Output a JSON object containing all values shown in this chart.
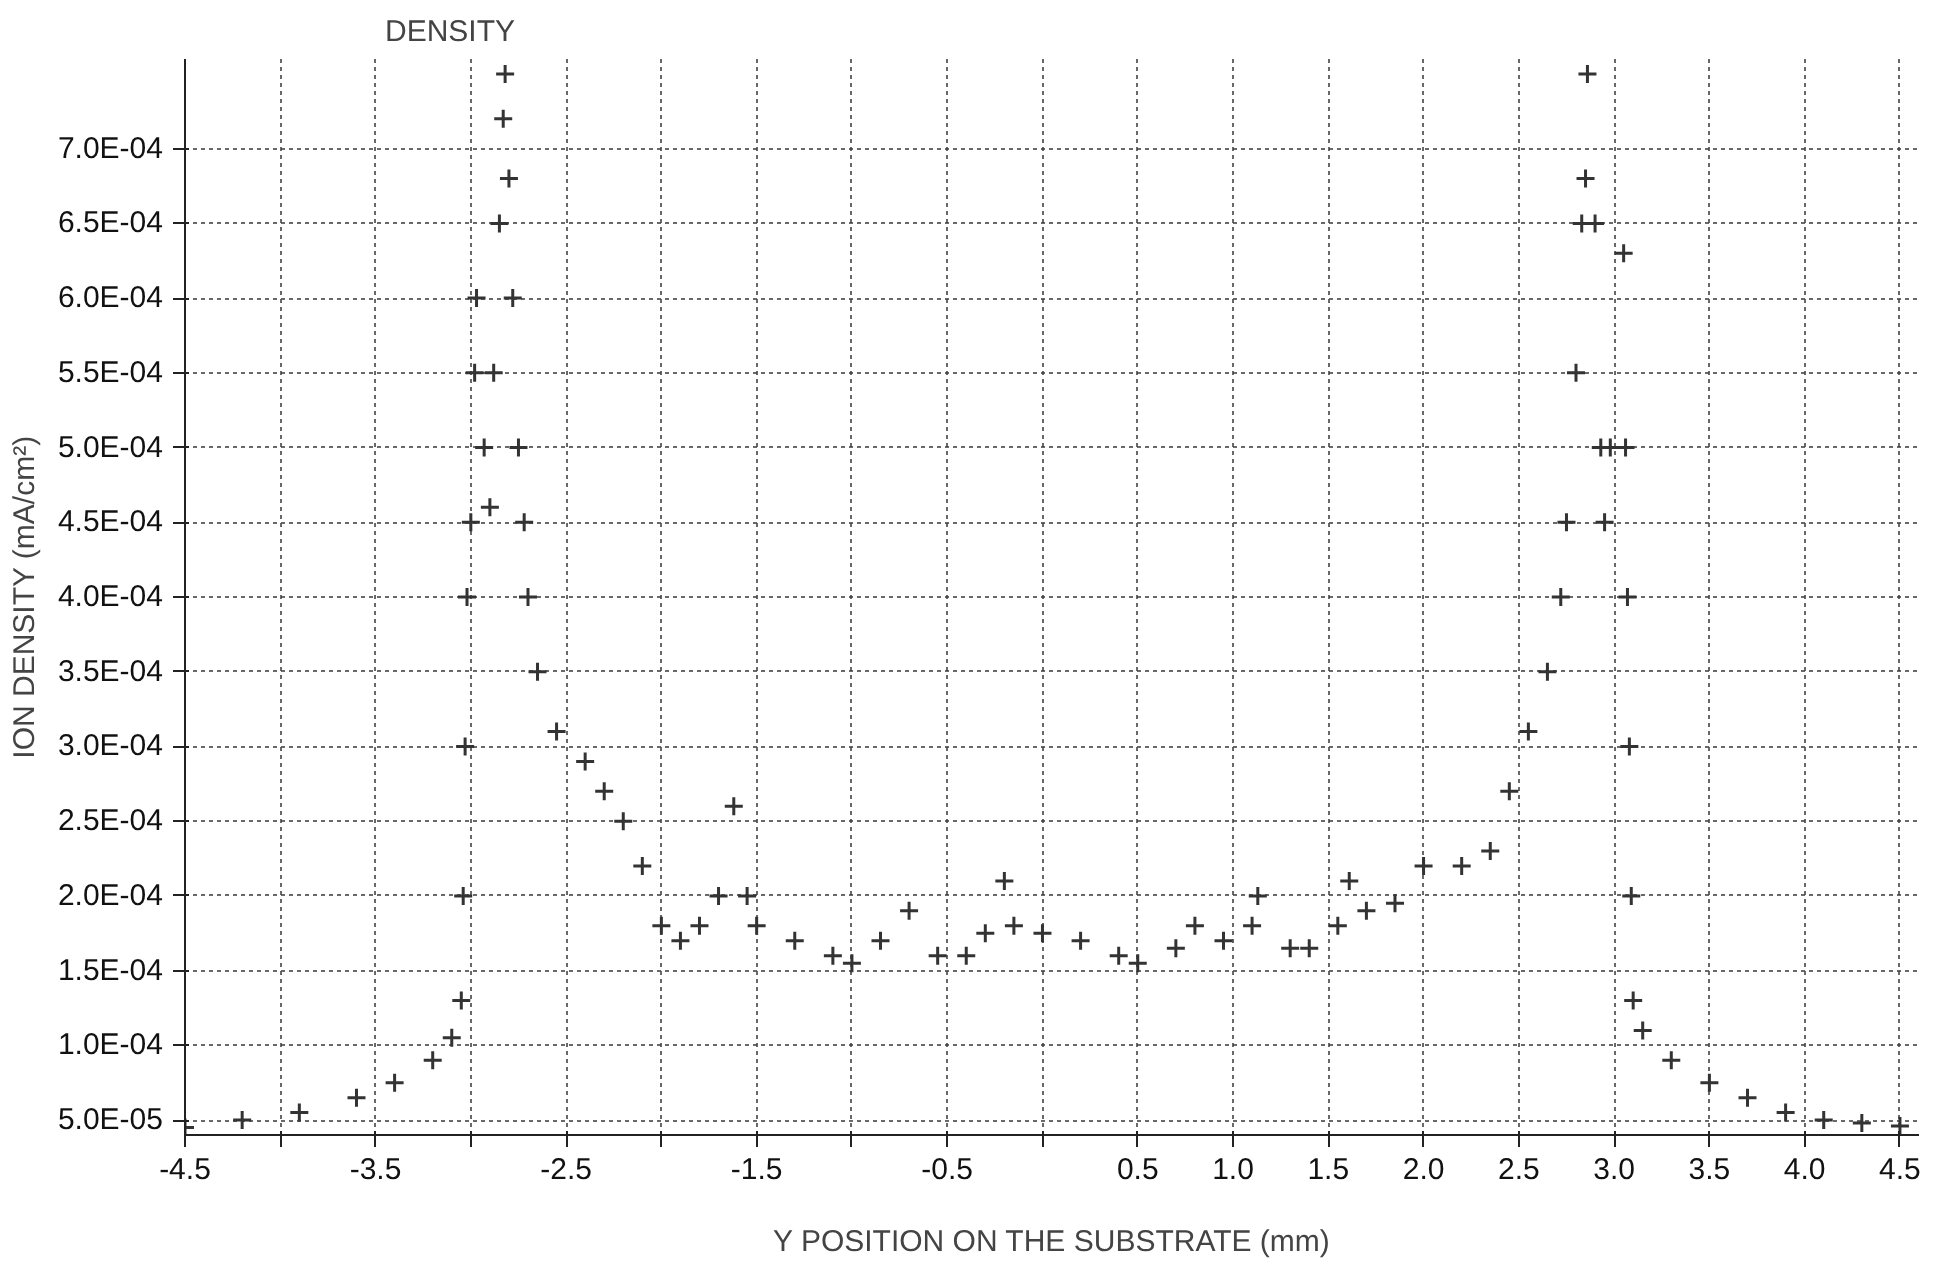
{
  "chart_data": {
    "type": "scatter",
    "xlabel": "Y POSITION ON THE SUBSTRATE (mm)",
    "ylabel": "ION DENSITY (mA/cm²)",
    "annotations": [
      "DENSITY"
    ],
    "marker": "cross",
    "grid": true,
    "xlim": [
      -4.5,
      4.6
    ],
    "ylim": [
      4e-05,
      0.00076
    ],
    "xticks": [
      -4.5,
      {
        "value": -4.0,
        "label": null
      },
      -3.5,
      {
        "value": -3.0,
        "label": null
      },
      -2.5,
      {
        "value": -2.0,
        "label": null
      },
      -1.5,
      {
        "value": -1.0,
        "label": null
      },
      -0.5,
      {
        "value": 0,
        "label": null
      },
      0.5,
      {
        "value": 1.0,
        "label": "1.0"
      },
      1.5,
      {
        "value": 2.0,
        "label": "2.0"
      },
      2.5,
      {
        "value": 3.0,
        "label": "3.0"
      },
      3.5,
      {
        "value": 4.0,
        "label": "4.0"
      },
      4.5
    ],
    "yticks": [
      {
        "value": 5e-05,
        "label": "5.0E-05"
      },
      {
        "value": 0.0001,
        "label": "1.0E-04"
      },
      {
        "value": 0.00015,
        "label": "1.5E-04"
      },
      {
        "value": 0.0002,
        "label": "2.0E-04"
      },
      {
        "value": 0.00025,
        "label": "2.5E-04"
      },
      {
        "value": 0.0003,
        "label": "3.0E-04"
      },
      {
        "value": 0.00035,
        "label": "3.5E-04"
      },
      {
        "value": 0.0004,
        "label": "4.0E-04"
      },
      {
        "value": 0.00045,
        "label": "4.5E-04"
      },
      {
        "value": 0.0005,
        "label": "5.0E-04"
      },
      {
        "value": 0.00055,
        "label": "5.5E-04"
      },
      {
        "value": 0.0006,
        "label": "6.0E-04"
      },
      {
        "value": 0.00065,
        "label": "6.5E-04"
      },
      {
        "value": 0.0007,
        "label": "7.0E-04"
      }
    ],
    "series": [
      {
        "color": "#333333",
        "x": [
          -4.5,
          -4.2,
          -3.9,
          -3.6,
          -3.4,
          -3.2,
          -3.1,
          -3.05,
          -3.04,
          -3.03,
          -3.02,
          -3.0,
          -2.98,
          -2.97,
          -2.93,
          -2.9,
          -2.88,
          -2.85,
          -2.83,
          -2.82,
          -2.8,
          -2.78,
          -2.75,
          -2.72,
          -2.7,
          -2.65,
          -2.55,
          -2.4,
          -2.3,
          -2.2,
          -2.1,
          -2.0,
          -1.9,
          -1.8,
          -1.7,
          -1.62,
          -1.55,
          -1.5,
          -1.3,
          -1.1,
          -1.0,
          -0.85,
          -0.7,
          -0.55,
          -0.4,
          -0.3,
          -0.2,
          -0.15,
          0.0,
          0.2,
          0.4,
          0.5,
          0.7,
          0.8,
          0.95,
          1.1,
          1.13,
          1.3,
          1.4,
          1.55,
          1.61,
          1.7,
          1.85,
          2.0,
          2.2,
          2.35,
          2.45,
          2.55,
          2.65,
          2.72,
          2.75,
          2.8,
          2.83,
          2.85,
          2.86,
          2.9,
          2.93,
          2.95,
          2.98,
          3.05,
          3.06,
          3.07,
          3.08,
          3.09,
          3.1,
          3.15,
          3.3,
          3.5,
          3.7,
          3.9,
          4.1,
          4.3,
          4.5
        ],
        "values": [
          4.5e-05,
          5e-05,
          5.5e-05,
          6.5e-05,
          7.5e-05,
          9e-05,
          0.000105,
          0.00013,
          0.0002,
          0.0003,
          0.0004,
          0.00045,
          0.00055,
          0.0006,
          0.0005,
          0.00046,
          0.00055,
          0.00065,
          0.00072,
          0.00075,
          0.00068,
          0.0006,
          0.0005,
          0.00045,
          0.0004,
          0.00035,
          0.00031,
          0.00029,
          0.00027,
          0.00025,
          0.00022,
          0.00018,
          0.00017,
          0.00018,
          0.0002,
          0.00026,
          0.0002,
          0.00018,
          0.00017,
          0.00016,
          0.000155,
          0.00017,
          0.00019,
          0.00016,
          0.00016,
          0.000175,
          0.00021,
          0.00018,
          0.000175,
          0.00017,
          0.00016,
          0.000155,
          0.000165,
          0.00018,
          0.00017,
          0.00018,
          0.0002,
          0.000165,
          0.000165,
          0.00018,
          0.00021,
          0.00019,
          0.000195,
          0.00022,
          0.00022,
          0.00023,
          0.00027,
          0.00031,
          0.00035,
          0.0004,
          0.00045,
          0.00055,
          0.00065,
          0.00068,
          0.00075,
          0.00065,
          0.0005,
          0.00045,
          0.0005,
          0.00063,
          0.0005,
          0.0004,
          0.0003,
          0.0002,
          0.00013,
          0.00011,
          9e-05,
          7.5e-05,
          6.5e-05,
          5.5e-05,
          5e-05,
          4.8e-05,
          4.6e-05
        ]
      }
    ]
  }
}
